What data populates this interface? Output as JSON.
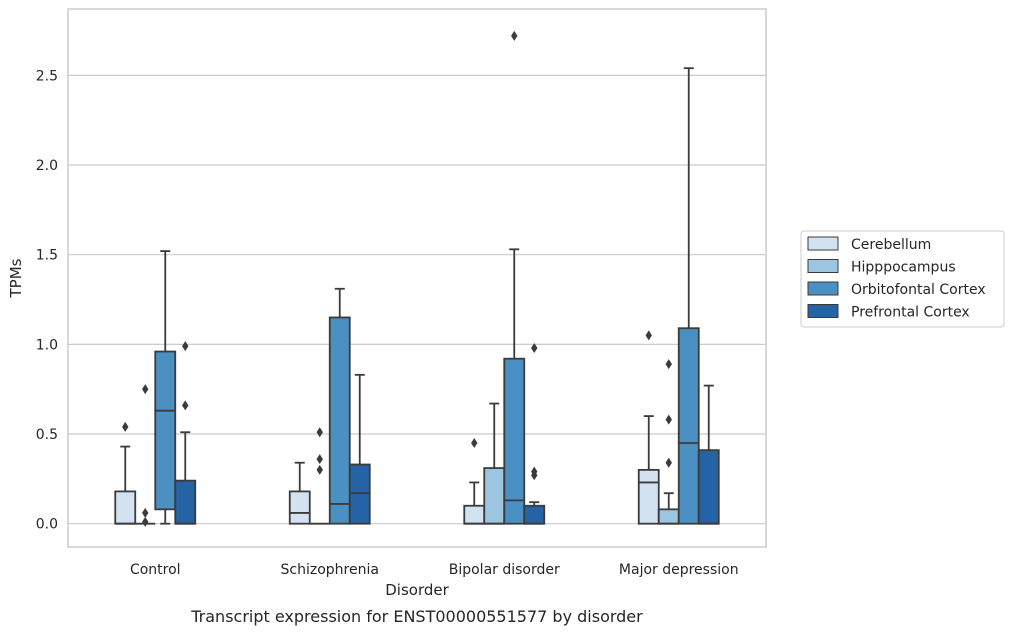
{
  "caption": "Transcript expression for ENST00000551577 by disorder",
  "colors": {
    "Cerebellum": "#d2e2f1",
    "Hipppocampus": "#9cc6e0",
    "Orbitofontal Cortex": "#4a90c3",
    "Prefrontal Cortex": "#2463a6",
    "edge": "#3b3b3b",
    "grid": "#cccccc",
    "frame": "#cccccc"
  },
  "chart_data": {
    "type": "box",
    "title": "",
    "xlabel": "Disorder",
    "ylabel": "TPMs",
    "ylim": [
      -0.13,
      2.87
    ],
    "yticks": [
      0.0,
      0.5,
      1.0,
      1.5,
      2.0,
      2.5
    ],
    "ytick_labels": [
      "0.0",
      "0.5",
      "1.0",
      "1.5",
      "2.0",
      "2.5"
    ],
    "grid": true,
    "legend_position": "right",
    "categories": [
      "Control",
      "Schizophrenia",
      "Bipolar disorder",
      "Major depression"
    ],
    "series": [
      {
        "name": "Cerebellum",
        "boxes": [
          {
            "whislo": 0.0,
            "q1": 0.0,
            "med": 0.0,
            "q3": 0.18,
            "whishi": 0.43,
            "fliers": [
              0.54
            ]
          },
          {
            "whislo": 0.0,
            "q1": 0.0,
            "med": 0.06,
            "q3": 0.18,
            "whishi": 0.34,
            "fliers": []
          },
          {
            "whislo": 0.0,
            "q1": 0.0,
            "med": 0.0,
            "q3": 0.1,
            "whishi": 0.23,
            "fliers": [
              0.45
            ]
          },
          {
            "whislo": 0.0,
            "q1": 0.0,
            "med": 0.23,
            "q3": 0.3,
            "whishi": 0.6,
            "fliers": [
              1.05
            ]
          }
        ]
      },
      {
        "name": "Hipppocampus",
        "boxes": [
          {
            "whislo": 0.0,
            "q1": 0.0,
            "med": 0.0,
            "q3": 0.0,
            "whishi": 0.0,
            "fliers": [
              0.01,
              0.06,
              0.75
            ]
          },
          {
            "whislo": 0.0,
            "q1": 0.0,
            "med": 0.0,
            "q3": 0.0,
            "whishi": 0.0,
            "fliers": [
              0.3,
              0.36,
              0.51
            ]
          },
          {
            "whislo": 0.0,
            "q1": 0.0,
            "med": 0.0,
            "q3": 0.31,
            "whishi": 0.67,
            "fliers": []
          },
          {
            "whislo": 0.0,
            "q1": 0.0,
            "med": 0.0,
            "q3": 0.08,
            "whishi": 0.17,
            "fliers": [
              0.34,
              0.58,
              0.89
            ]
          }
        ]
      },
      {
        "name": "Orbitofontal Cortex",
        "boxes": [
          {
            "whislo": 0.0,
            "q1": 0.08,
            "med": 0.63,
            "q3": 0.96,
            "whishi": 1.52,
            "fliers": []
          },
          {
            "whislo": 0.0,
            "q1": 0.0,
            "med": 0.11,
            "q3": 1.15,
            "whishi": 1.31,
            "fliers": []
          },
          {
            "whislo": 0.0,
            "q1": 0.0,
            "med": 0.13,
            "q3": 0.92,
            "whishi": 1.53,
            "fliers": [
              2.72
            ]
          },
          {
            "whislo": 0.0,
            "q1": 0.0,
            "med": 0.45,
            "q3": 1.09,
            "whishi": 2.54,
            "fliers": []
          }
        ]
      },
      {
        "name": "Prefrontal Cortex",
        "boxes": [
          {
            "whislo": 0.0,
            "q1": 0.0,
            "med": 0.0,
            "q3": 0.24,
            "whishi": 0.51,
            "fliers": [
              0.66,
              0.99
            ]
          },
          {
            "whislo": 0.0,
            "q1": 0.0,
            "med": 0.17,
            "q3": 0.33,
            "whishi": 0.83,
            "fliers": []
          },
          {
            "whislo": 0.0,
            "q1": 0.0,
            "med": 0.0,
            "q3": 0.1,
            "whishi": 0.12,
            "fliers": [
              0.27,
              0.29,
              0.98
            ]
          },
          {
            "whislo": 0.0,
            "q1": 0.0,
            "med": 0.0,
            "q3": 0.41,
            "whishi": 0.77,
            "fliers": []
          }
        ]
      }
    ]
  }
}
